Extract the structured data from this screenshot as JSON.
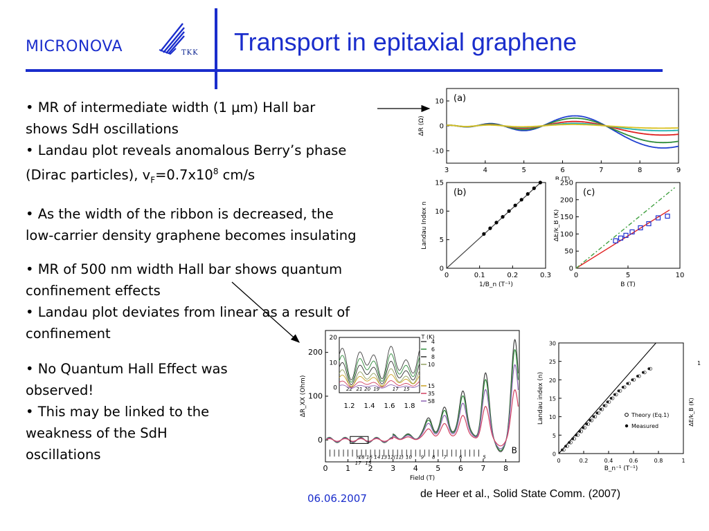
{
  "header": {
    "brand": "MICRONOVA",
    "logo_text": "TKK",
    "title": "Transport in epitaxial graphene"
  },
  "bullets": {
    "g1": {
      "l1": "• MR of intermediate width (1 µm) Hall bar",
      "l2": "shows SdH oscillations",
      "l3": "• Landau plot reveals anomalous Berry’s phase",
      "l4_pre": "(Dirac particles), v",
      "l4_sub": "F",
      "l4_mid": "=0.7x10",
      "l4_sup": "8",
      "l4_post": " cm/s"
    },
    "g2": {
      "l1": "• As the width of the ribbon is decreased, the",
      "l2": "low-carrier density graphene becomes insulating"
    },
    "g3": {
      "l1": "• MR of 500 nm width Hall bar shows quantum",
      "l2": "confinement effects",
      "l3": "• Landau plot deviates from linear as a result of",
      "l4": "confinement"
    },
    "g4": {
      "l1": "• No Quantum Hall Effect was",
      "l2": "observed!",
      "l3": "• This may be linked to the",
      "l4": "weakness of the SdH",
      "l5": "oscillations"
    }
  },
  "footer": {
    "date": "06.06.2007",
    "citation": "de Heer et al., Solid State Comm. (2007)"
  },
  "chart_data": [
    {
      "type": "line",
      "panel": "(a)",
      "xlabel": "B (T)",
      "ylabel": "ΔR (Ω)",
      "xlim": [
        3,
        9
      ],
      "ylim": [
        -15,
        15
      ],
      "xticks": [
        3,
        4,
        5,
        6,
        7,
        8,
        9
      ],
      "yticks": [
        -10,
        0,
        10
      ],
      "series": [
        {
          "color": "#1f3fd0",
          "amp": 10
        },
        {
          "color": "#2e8b3a",
          "amp": 7.5
        },
        {
          "color": "#e02020",
          "amp": 4
        },
        {
          "color": "#20b0b0",
          "amp": 2
        },
        {
          "color": "#d8c020",
          "amp": 0.8
        }
      ]
    },
    {
      "type": "scatter",
      "panel": "(b)",
      "xlabel": "1/B_n (T⁻¹)",
      "ylabel": "Landau Index n",
      "xlim": [
        0,
        0.3
      ],
      "ylim": [
        0,
        15
      ],
      "xticks": [
        0,
        0.1,
        0.2,
        0.3
      ],
      "yticks": [
        0,
        5,
        10,
        15
      ],
      "fit_line": {
        "x0": 0,
        "y0": 0,
        "x1": 0.285,
        "y1": 15
      },
      "points": [
        {
          "x": 0.113,
          "y": 6
        },
        {
          "x": 0.132,
          "y": 7
        },
        {
          "x": 0.151,
          "y": 8
        },
        {
          "x": 0.17,
          "y": 9
        },
        {
          "x": 0.189,
          "y": 10
        },
        {
          "x": 0.208,
          "y": 11
        },
        {
          "x": 0.227,
          "y": 12
        },
        {
          "x": 0.246,
          "y": 13
        },
        {
          "x": 0.265,
          "y": 14
        },
        {
          "x": 0.284,
          "y": 15
        }
      ]
    },
    {
      "type": "scatter",
      "panel": "(c)",
      "xlabel": "B (T)",
      "ylabel": "ΔE/k_B (K)",
      "xlim": [
        0,
        10
      ],
      "ylim": [
        0,
        250
      ],
      "xticks": [
        0,
        5,
        10
      ],
      "yticks": [
        0,
        50,
        100,
        150,
        200,
        250
      ],
      "lines": [
        {
          "color": "#e02020",
          "x0": 0,
          "y0": 0,
          "x1": 9,
          "y1": 170,
          "dash": ""
        },
        {
          "color": "#40a040",
          "x0": 0,
          "y0": 0,
          "x1": 9.5,
          "y1": 235,
          "dash": "6,3,2,3"
        }
      ],
      "points": [
        {
          "x": 3.8,
          "y": 80
        },
        {
          "x": 4.3,
          "y": 88
        },
        {
          "x": 4.8,
          "y": 96
        },
        {
          "x": 5.4,
          "y": 106
        },
        {
          "x": 6.2,
          "y": 118
        },
        {
          "x": 7,
          "y": 130
        },
        {
          "x": 7.9,
          "y": 147
        },
        {
          "x": 8.8,
          "y": 152
        }
      ]
    },
    {
      "type": "line",
      "panel": "main",
      "xlabel": "Field (T)",
      "ylabel": "ΔR_XX (Ohm)",
      "xlim": [
        0,
        8.6
      ],
      "ylim": [
        -50,
        250
      ],
      "xticks": [
        0,
        1,
        2,
        3,
        4,
        5,
        6,
        7,
        8
      ],
      "yticks": [
        0,
        100,
        200
      ],
      "b_label": "B",
      "index_labels": [
        "n",
        "18",
        "16",
        "14",
        "13",
        "12",
        "(11)",
        "10",
        "9",
        "8",
        "7",
        "6",
        "5",
        "17",
        "15"
      ],
      "peaks": [
        {
          "x": 8.4,
          "y": 220
        },
        {
          "x": 7.1,
          "y": 140
        },
        {
          "x": 6.1,
          "y": 110
        },
        {
          "x": 5.3,
          "y": 70
        },
        {
          "x": 4.6,
          "y": 45
        }
      ],
      "series": [
        {
          "color": "#404040",
          "scale": 1.0
        },
        {
          "color": "#2e8b3a",
          "scale": 0.9
        },
        {
          "color": "#8a60b0",
          "scale": 0.75
        },
        {
          "color": "#d04060",
          "scale": 0.5
        }
      ],
      "inset": {
        "xlim": [
          1.1,
          1.9
        ],
        "ylim": [
          -2,
          20
        ],
        "xticks": [
          1.2,
          1.4,
          1.6,
          1.8
        ],
        "yticks": [
          0,
          10,
          20
        ],
        "index_labels": [
          "22",
          "21",
          "20",
          "19",
          "17",
          "15"
        ],
        "legend_title": "T (K)",
        "legend": [
          {
            "label": "4",
            "color": "#404040"
          },
          {
            "label": "6",
            "color": "#2e8b3a"
          },
          {
            "label": "8",
            "color": "#303030"
          },
          {
            "label": "10",
            "color": "#90a060"
          },
          {
            "label": "15",
            "color": "#c8a020"
          },
          {
            "label": "35",
            "color": "#d04060"
          },
          {
            "label": "58",
            "color": "#8a60b0"
          }
        ]
      }
    },
    {
      "type": "scatter",
      "panel": "landau",
      "xlabel": "B_n⁻¹ (T⁻¹)",
      "ylabel": "Landau index (n)",
      "ylabel2": "ΔE/k_B (K)",
      "xlim": [
        0,
        1
      ],
      "ylim": [
        0,
        30
      ],
      "xticks": [
        0,
        0.2,
        0.4,
        0.6,
        0.8,
        1
      ],
      "yticks": [
        0,
        5,
        10,
        15,
        20,
        25,
        30
      ],
      "legend": [
        {
          "label": "Theory (Eq.1)",
          "marker": "open-circle"
        },
        {
          "label": "Measured",
          "marker": "filled-circle"
        }
      ]
    }
  ]
}
